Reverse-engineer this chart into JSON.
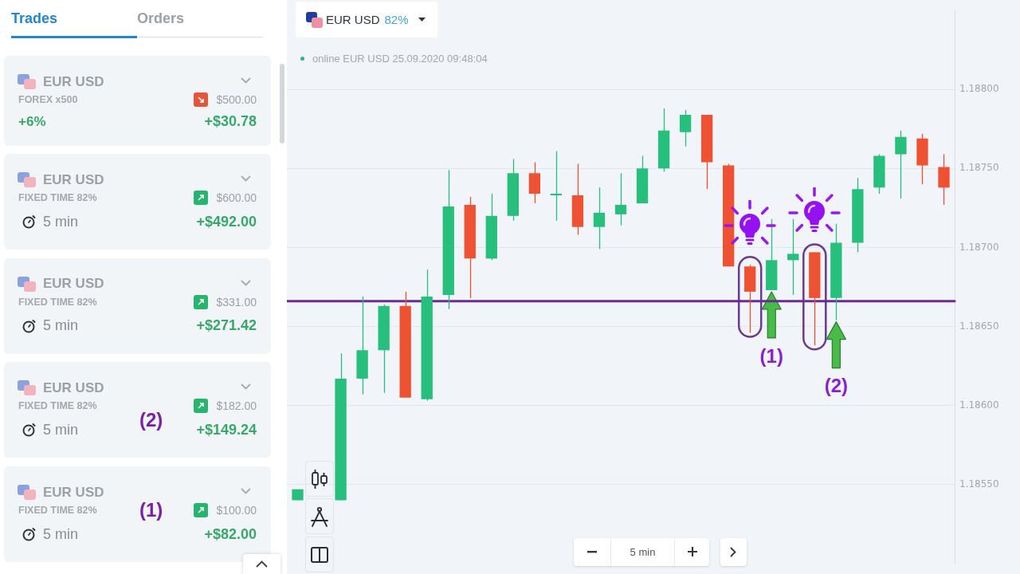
{
  "chart_data": [
    {
      "type": "other",
      "annotations": [
        "Trades",
        "Orders",
        "EUR USD",
        "FOREX x500",
        "$500.00",
        "+6%",
        "+$30.78",
        "EUR USD",
        "FIXED TIME 82%",
        "$600.00",
        "5 min",
        "+$492.00",
        "EUR USD",
        "FIXED TIME 82%",
        "$331.00",
        "5 min",
        "+$271.42",
        "EUR USD",
        "FIXED TIME 82%",
        "$182.00",
        "5 min",
        "+$149.24",
        "EUR USD",
        "FIXED TIME 82%",
        "$100.00",
        "5 min",
        "+$82.00",
        "(2)",
        "(1)"
      ]
    },
    {
      "type": "candlestick",
      "title": "EUR USD",
      "subtitle": "online EUR USD 25.09.2020 09:48:04",
      "annotations": [
        "82%",
        "5 min",
        "(1)",
        "(2)"
      ],
      "categories": [
        null,
        null,
        null,
        null,
        null,
        null,
        null,
        null,
        null,
        null,
        null,
        null,
        null,
        null,
        null,
        null,
        null,
        null,
        null,
        null,
        null,
        null,
        null,
        null,
        null,
        null,
        null,
        null,
        null,
        null,
        null
      ],
      "ohlc": [
        [
          1.1854,
          1.18547,
          1.1854,
          1.18547
        ],
        null,
        [
          1.1854,
          1.18633,
          1.1854,
          1.18617
        ],
        [
          1.18617,
          1.18669,
          1.18607,
          1.18635
        ],
        [
          1.18635,
          1.18664,
          1.18608,
          1.18663
        ],
        [
          1.18663,
          1.18672,
          1.18605,
          1.18605
        ],
        [
          1.18604,
          1.18686,
          1.18603,
          1.18669
        ],
        [
          1.1867,
          1.18749,
          1.18661,
          1.18726
        ],
        [
          1.18727,
          1.18732,
          1.18668,
          1.18693
        ],
        [
          1.18693,
          1.18734,
          1.18692,
          1.1872
        ],
        [
          1.1872,
          1.18756,
          1.18717,
          1.18747
        ],
        [
          1.18747,
          1.18754,
          1.18728,
          1.18734
        ],
        [
          1.18733,
          1.18761,
          1.18717,
          1.18733
        ],
        [
          1.18733,
          1.18753,
          1.18708,
          1.18713
        ],
        [
          1.18713,
          1.18738,
          1.18699,
          1.18722
        ],
        [
          1.18721,
          1.18747,
          1.18714,
          1.18727
        ],
        [
          1.18728,
          1.18758,
          1.18728,
          1.1875
        ],
        [
          1.1875,
          1.18788,
          1.18748,
          1.18774
        ],
        [
          1.18773,
          1.18787,
          1.18764,
          1.18784
        ],
        [
          1.18784,
          1.18784,
          1.18737,
          1.18754
        ],
        [
          1.18752,
          1.18753,
          1.18688,
          1.18688
        ],
        [
          1.18688,
          1.18689,
          1.18646,
          1.18672
        ],
        [
          1.18673,
          1.18718,
          1.18673,
          1.18692
        ],
        [
          1.18692,
          1.18718,
          1.1867,
          1.18696
        ],
        [
          1.18697,
          1.18697,
          1.18638,
          1.18668
        ],
        [
          1.18668,
          1.18715,
          1.18654,
          1.18703
        ],
        [
          1.18703,
          1.18744,
          1.18697,
          1.18737
        ],
        [
          1.18738,
          1.18759,
          1.18734,
          1.18758
        ],
        [
          1.18759,
          1.18774,
          1.18731,
          1.1877
        ],
        [
          1.18769,
          1.18772,
          1.1874,
          1.18752
        ],
        [
          1.18751,
          1.18759,
          1.18727,
          1.18738
        ]
      ],
      "colors": [
        "#26bf7c",
        null,
        "#26bf7c",
        "#26bf7c",
        "#26bf7c",
        "#ef5232",
        "#26bf7c",
        "#26bf7c",
        "#ef5232",
        "#26bf7c",
        "#26bf7c",
        "#ef5232",
        "#26bf7c",
        "#ef5232",
        "#26bf7c",
        "#26bf7c",
        "#26bf7c",
        "#26bf7c",
        "#26bf7c",
        "#ef5232",
        "#ef5232",
        "#ef5232",
        "#26bf7c",
        "#26bf7c",
        "#ef5232",
        "#26bf7c",
        "#26bf7c",
        "#26bf7c",
        "#26bf7c",
        "#ef5232",
        "#ef5232"
      ],
      "ylim": [
        1.185,
        1.1885
      ],
      "yticks": [
        {
          "value": 1.1855,
          "label": "1.18550"
        },
        {
          "value": 1.186,
          "label": "1.18600"
        },
        {
          "value": 1.1865,
          "label": "1.18650"
        },
        {
          "value": 1.187,
          "label": "1.18700"
        },
        {
          "value": 1.1875,
          "label": "1.18750"
        },
        {
          "value": 1.188,
          "label": "1.18800"
        }
      ],
      "tick_labels": "y",
      "grid": "y",
      "ref_lines": [
        {
          "axis": "y",
          "value": 1.18666,
          "color": "#6a2c91"
        }
      ]
    }
  ]
}
